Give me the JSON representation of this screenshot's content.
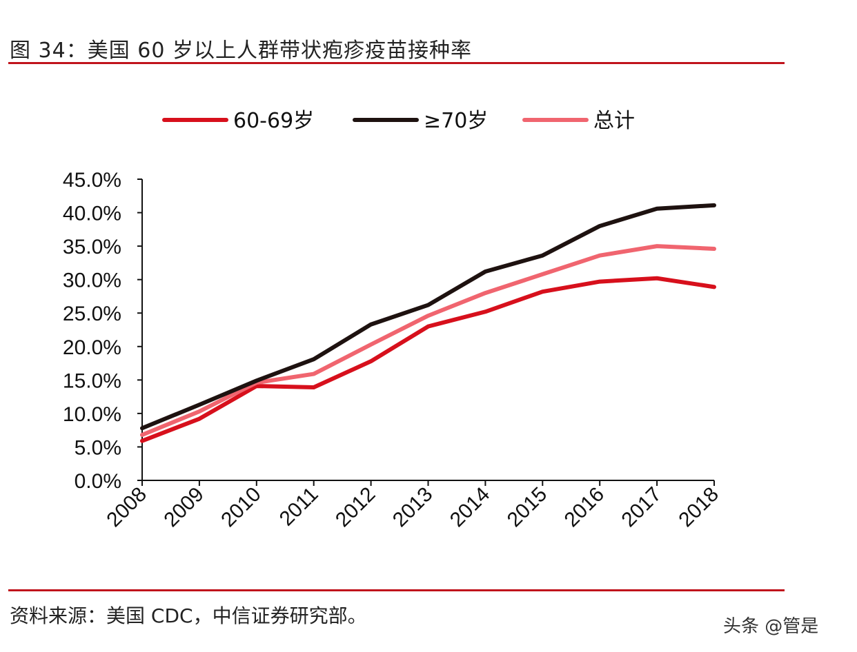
{
  "title": "图 34：美国 60 岁以上人群带状疱疹疫苗接种率",
  "source": "资料来源：美国 CDC，中信证券研究部。",
  "watermark": "头条 @管是",
  "chart_data": {
    "type": "line",
    "title": "",
    "xlabel": "",
    "ylabel": "",
    "categories": [
      "2008",
      "2009",
      "2010",
      "2011",
      "2012",
      "2013",
      "2014",
      "2015",
      "2016",
      "2017",
      "2018"
    ],
    "ylim": [
      0,
      45
    ],
    "yticks": [
      "0.0%",
      "5.0%",
      "10.0%",
      "15.0%",
      "20.0%",
      "25.0%",
      "30.0%",
      "35.0%",
      "40.0%",
      "45.0%"
    ],
    "grid": false,
    "legend_position": "top",
    "series": [
      {
        "name": "60-69岁",
        "color": "#d7101c",
        "values": [
          5.9,
          9.2,
          14.1,
          13.9,
          17.8,
          23.0,
          25.2,
          28.2,
          29.7,
          30.2,
          28.9
        ]
      },
      {
        "name": "≥70岁",
        "color": "#1e1210",
        "values": [
          7.8,
          11.3,
          14.9,
          18.1,
          23.3,
          26.2,
          31.2,
          33.6,
          38.0,
          40.6,
          41.1
        ]
      },
      {
        "name": "总计",
        "color": "#f0656f",
        "values": [
          6.8,
          10.3,
          14.6,
          15.9,
          20.3,
          24.6,
          28.0,
          30.8,
          33.6,
          35.0,
          34.6
        ]
      }
    ]
  }
}
